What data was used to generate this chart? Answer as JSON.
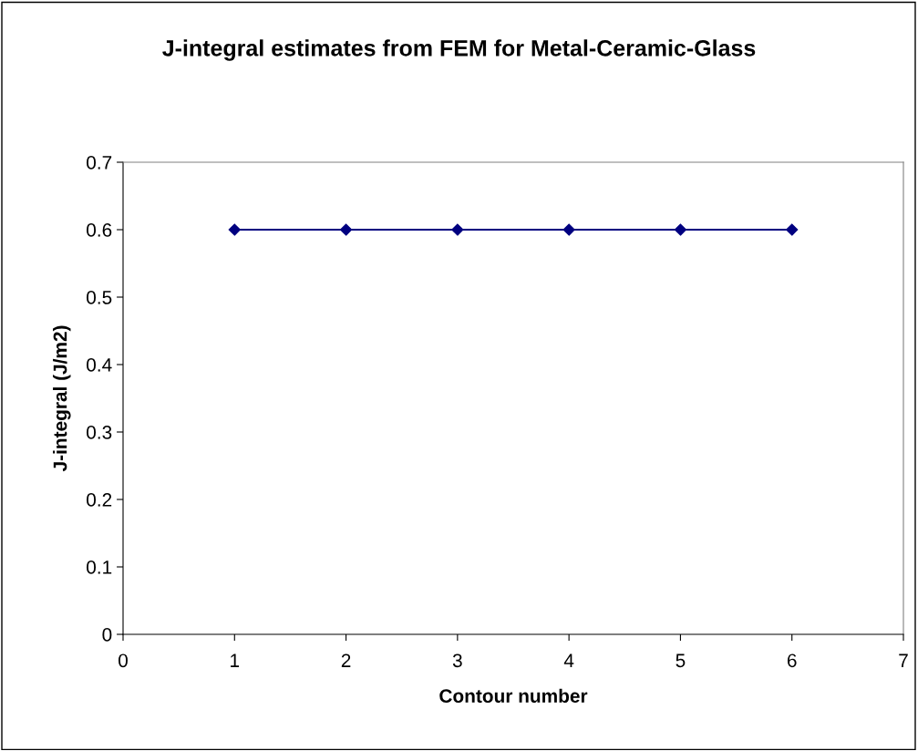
{
  "chart_data": {
    "type": "line",
    "title": "J-integral estimates from FEM for Metal-Ceramic-Glass",
    "xlabel": "Contour number",
    "ylabel": "J-integral (J/m2)",
    "x": [
      1,
      2,
      3,
      4,
      5,
      6
    ],
    "series": [
      {
        "color": "#000080",
        "values": [
          0.6,
          0.6,
          0.6,
          0.6,
          0.6,
          0.6
        ]
      }
    ],
    "xlim": [
      0,
      7
    ],
    "xticks": [
      0,
      1,
      2,
      3,
      4,
      5,
      6,
      7
    ],
    "ylim": [
      0,
      0.7
    ],
    "yticks": [
      0,
      0.1,
      0.2,
      0.3,
      0.4,
      0.5,
      0.6,
      0.7
    ],
    "marker": "diamond",
    "line_style": "solid",
    "grid": false,
    "legend": false
  }
}
